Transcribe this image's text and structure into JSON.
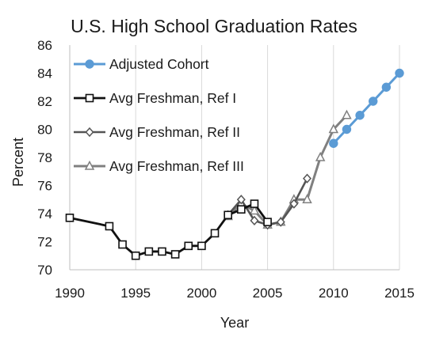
{
  "chart_data": {
    "type": "line",
    "title": "U.S. High School Graduation Rates",
    "xlabel": "Year",
    "ylabel": "Percent",
    "xlim": [
      1990,
      2015
    ],
    "ylim": [
      70,
      86
    ],
    "x_ticks": [
      1990,
      1995,
      2000,
      2005,
      2010,
      2015
    ],
    "y_ticks": [
      70,
      72,
      74,
      76,
      78,
      80,
      82,
      84,
      86
    ],
    "grid": "vertical",
    "legend_position": "top-left",
    "series": [
      {
        "name": "Adjusted Cohort",
        "color": "#5B9BD5",
        "marker": "circle",
        "x": [
          2010,
          2011,
          2012,
          2013,
          2014,
          2015
        ],
        "y": [
          79,
          80,
          81,
          82,
          83,
          84
        ]
      },
      {
        "name": "Avg Freshman, Ref I",
        "color": "#111111",
        "marker": "square",
        "x": [
          1990,
          1993,
          1994,
          1995,
          1996,
          1997,
          1998,
          1999,
          2000,
          2001,
          2002,
          2003,
          2004,
          2005
        ],
        "y": [
          73.7,
          73.1,
          71.8,
          71.0,
          71.3,
          71.3,
          71.1,
          71.7,
          71.7,
          72.6,
          73.9,
          74.3,
          74.7,
          73.4
        ]
      },
      {
        "name": "Avg Freshman, Ref II",
        "color": "#555555",
        "marker": "diamond",
        "x": [
          2002,
          2003,
          2004,
          2005,
          2006,
          2007,
          2008
        ],
        "y": [
          73.9,
          75.0,
          73.5,
          73.2,
          73.4,
          74.7,
          76.5
        ]
      },
      {
        "name": "Avg Freshman, Ref III",
        "color": "#808080",
        "marker": "triangle",
        "x": [
          2002,
          2003,
          2004,
          2005,
          2006,
          2007,
          2008,
          2009,
          2010,
          2011
        ],
        "y": [
          73.8,
          74.7,
          74.2,
          73.2,
          73.4,
          75.0,
          75.0,
          78.0,
          80.0,
          81.0
        ]
      }
    ]
  }
}
